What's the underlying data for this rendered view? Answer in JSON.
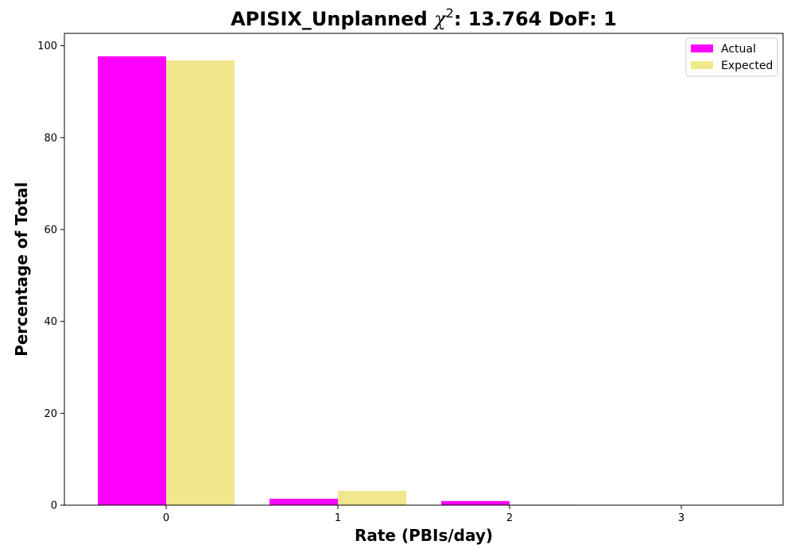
{
  "chart_data": {
    "type": "bar",
    "title_prefix": "APISIX_Unplanned ",
    "title_symbol": "χ",
    "title_superscript": "2",
    "title_suffix": ": 13.764 DoF: 1",
    "xlabel": "Rate (PBIs/day)",
    "ylabel": "Percentage of Total",
    "categories": [
      "0",
      "1",
      "2",
      "3"
    ],
    "yticks": [
      "0",
      "20",
      "40",
      "60",
      "80",
      "100"
    ],
    "ylim": [
      0,
      102.7
    ],
    "legend_position": "top-right",
    "series": [
      {
        "name": "Actual",
        "color": "#ff00ff",
        "values": [
          97.7,
          1.4,
          0.9,
          0.0
        ]
      },
      {
        "name": "Expected",
        "color": "#f0e68c",
        "values": [
          96.8,
          3.1,
          0.1,
          0.0
        ]
      }
    ]
  }
}
